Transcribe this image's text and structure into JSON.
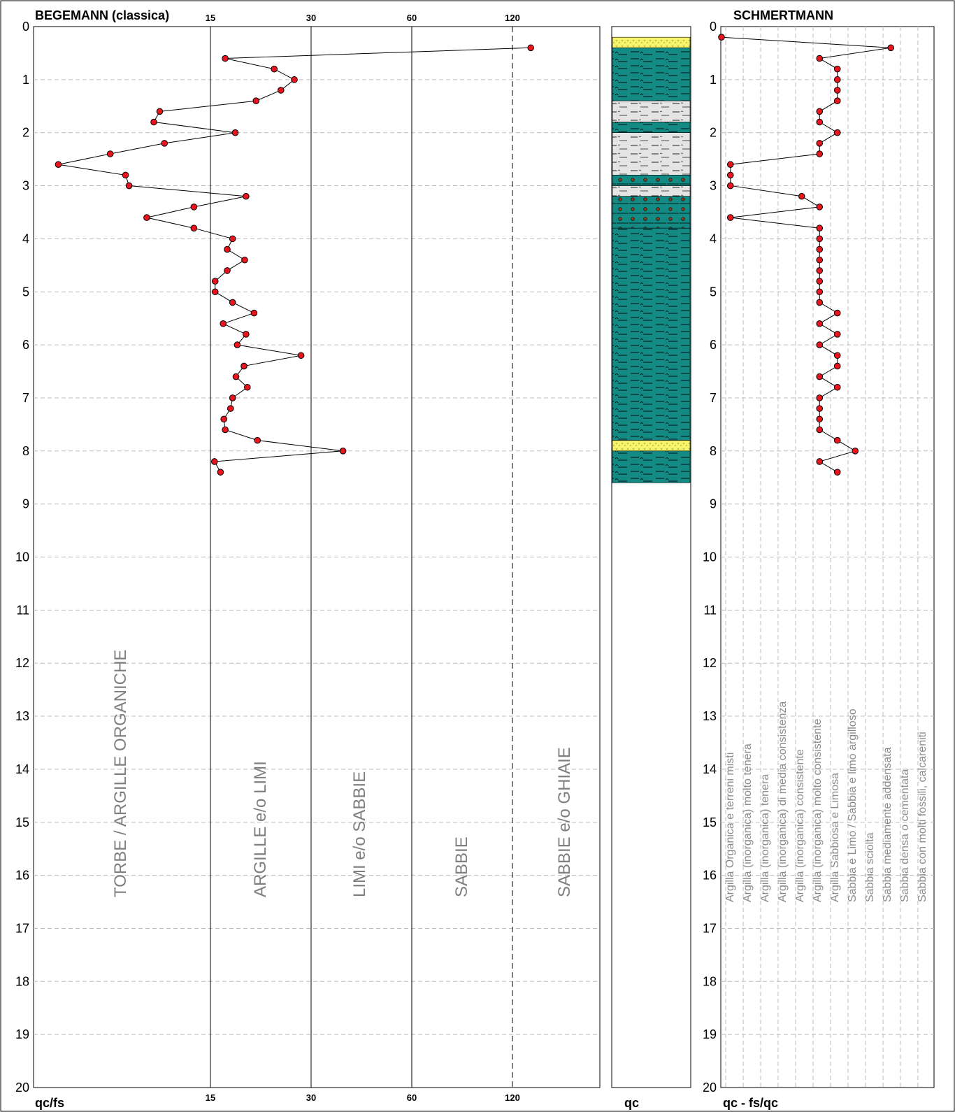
{
  "colors": {
    "point": "#e8141e",
    "teal": "#138a84",
    "yellow": "#f6f26a",
    "grey_layer": "#e4e4e4",
    "grid": "#bdbdbd",
    "zone_text": "#7f7f7f"
  },
  "chart_data": [
    {
      "type": "line",
      "title": "BEGEMANN (classica)",
      "xlabel": "qc/fs",
      "ylabel": "",
      "ylim": [
        0,
        20
      ],
      "y_ticks": [
        "0",
        "1",
        "2",
        "3",
        "4",
        "5",
        "6",
        "7",
        "8",
        "9",
        "10",
        "11",
        "12",
        "13",
        "14",
        "15",
        "16",
        "17",
        "18",
        "19",
        "20"
      ],
      "x_ticks": [
        "15",
        "30",
        "60",
        "120"
      ],
      "zones": [
        "TORBE / ARGILLE ORGANICHE",
        "ARGILLE e/o LIMI",
        "LIMI e/o SABBIE",
        "SABBIE",
        "SABBIE e/o GHIAIE"
      ],
      "series": [
        {
          "x": [
            141,
            17.2,
            24.5,
            27.5,
            25.5,
            21.8,
            10.7,
            10.2,
            18.7,
            11.1,
            6.5,
            2.1,
            7.8,
            8.1,
            20.3,
            13.6,
            9.6,
            13.6,
            18.3,
            17.5,
            20.1,
            17.5,
            15.7,
            15.7,
            18.3,
            21.5,
            16.9,
            20.3,
            19.0,
            28.5,
            20.0,
            18.8,
            20.5,
            18.3,
            18.0,
            17.0,
            17.2,
            22.0,
            39.5,
            15.6,
            16.5
          ],
          "y": [
            0.4,
            0.6,
            0.8,
            1.0,
            1.2,
            1.4,
            1.6,
            1.8,
            2.0,
            2.2,
            2.4,
            2.6,
            2.8,
            3.0,
            3.2,
            3.4,
            3.6,
            3.8,
            4.0,
            4.2,
            4.4,
            4.6,
            4.8,
            5.0,
            5.2,
            5.4,
            5.6,
            5.8,
            6.0,
            6.2,
            6.4,
            6.6,
            6.8,
            7.0,
            7.2,
            7.4,
            7.6,
            7.8,
            8.0,
            8.2,
            8.4
          ]
        }
      ]
    },
    {
      "type": "table",
      "title": "",
      "xlabel": "qc",
      "ylim": [
        0,
        20
      ],
      "layers": [
        {
          "top": 0.2,
          "bottom": 0.4,
          "fill": "yellow"
        },
        {
          "top": 0.4,
          "bottom": 1.4,
          "fill": "teal"
        },
        {
          "top": 1.4,
          "bottom": 1.8,
          "fill": "grey"
        },
        {
          "top": 1.8,
          "bottom": 2.0,
          "fill": "teal"
        },
        {
          "top": 2.0,
          "bottom": 2.8,
          "fill": "grey"
        },
        {
          "top": 2.8,
          "bottom": 3.0,
          "fill": "teal"
        },
        {
          "top": 3.0,
          "bottom": 3.2,
          "fill": "grey"
        },
        {
          "top": 3.2,
          "bottom": 3.8,
          "fill": "teal"
        },
        {
          "top": 3.8,
          "bottom": 7.8,
          "fill": "teal"
        },
        {
          "top": 7.8,
          "bottom": 8.0,
          "fill": "yellow"
        },
        {
          "top": 8.0,
          "bottom": 8.6,
          "fill": "teal"
        }
      ]
    },
    {
      "type": "line",
      "title": "SCHMERTMANN",
      "xlabel": "qc - fs/qc",
      "ylim": [
        0,
        20
      ],
      "y_ticks": [
        "0",
        "1",
        "2",
        "3",
        "4",
        "5",
        "6",
        "7",
        "8",
        "9",
        "10",
        "11",
        "12",
        "13",
        "14",
        "15",
        "16",
        "17",
        "18",
        "19",
        "20"
      ],
      "categories": [
        "Argilla Organica e terreni misti",
        "Argilla (inorganica) molto tenera",
        "Argilla (inorganica) tenera",
        "Argilla (inorganica) di media consistenza",
        "Argilla (inorganica) consistente",
        "Argilla (inorganica) molto consistente",
        "Argilla Sabbiosa e Limosa",
        "Sabbia e Limo / Sabbia e limo argilloso",
        "Sabbia sciolta",
        "Sabbia mediamente addensata",
        "Sabbia densa o cementata",
        "Sabbia con molti fossili, calcareniti"
      ],
      "series": [
        {
          "x": [
            0,
            9.5,
            5.5,
            6.5,
            6.5,
            6.5,
            6.5,
            5.5,
            5.5,
            6.5,
            5.5,
            5.5,
            0.5,
            0.5,
            0.5,
            4.5,
            5.5,
            0.5,
            5.5,
            5.5,
            5.5,
            5.5,
            5.5,
            5.5,
            5.5,
            5.5,
            6.5,
            5.5,
            6.5,
            5.5,
            6.5,
            6.5,
            5.5,
            6.5,
            5.5,
            5.5,
            5.5,
            5.5,
            6.5,
            7.5,
            5.5,
            6.5
          ],
          "y": [
            0.2,
            0.4,
            0.6,
            0.8,
            1.0,
            1.2,
            1.4,
            1.6,
            1.8,
            2.0,
            2.2,
            2.4,
            2.6,
            2.8,
            3.0,
            3.2,
            3.4,
            3.6,
            3.8,
            4.0,
            4.2,
            4.4,
            4.6,
            4.8,
            5.0,
            5.2,
            5.4,
            5.6,
            5.8,
            6.0,
            6.2,
            6.4,
            6.6,
            6.8,
            7.0,
            7.2,
            7.4,
            7.6,
            7.8,
            8.0,
            8.2,
            8.4
          ]
        }
      ]
    }
  ]
}
